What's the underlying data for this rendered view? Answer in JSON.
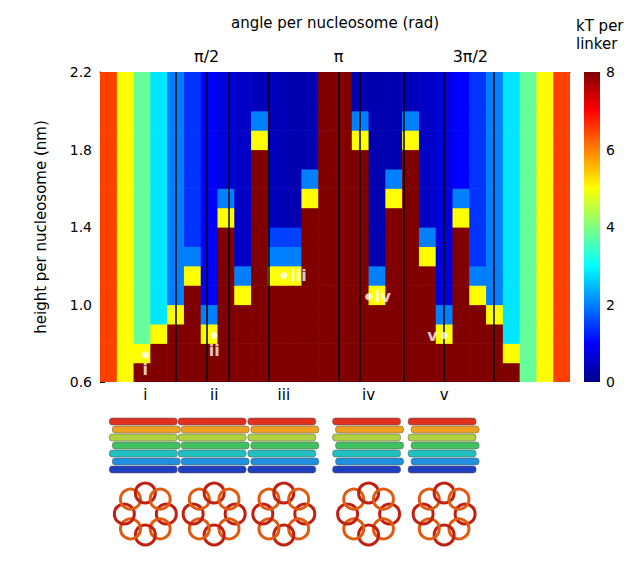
{
  "chart_data": {
    "type": "heatmap",
    "x_label": "angle per nucleosome (rad)",
    "y_label": "height per nucleosome (nm)",
    "xlim": [
      0.3,
      5.9
    ],
    "xticks": [
      {
        "value": 1.5708,
        "label": "π/2"
      },
      {
        "value": 3.1416,
        "label": "π"
      },
      {
        "value": 4.7124,
        "label": "3π/2"
      }
    ],
    "ylim": [
      0.6,
      2.2
    ],
    "yticks": [
      0.6,
      {
        "value": 1,
        "label": "1.0"
      },
      1.4,
      1.8,
      2.2
    ],
    "grid": false,
    "x": [
      0.4,
      0.6,
      0.8,
      1.0,
      1.2,
      1.4,
      1.6,
      1.8,
      2.0,
      2.2,
      2.4,
      2.6,
      2.8,
      3.0,
      3.2,
      3.4,
      3.6,
      3.8,
      4.0,
      4.2,
      4.4,
      4.6,
      4.8,
      5.0,
      5.2,
      5.4,
      5.6,
      5.8
    ],
    "y": [
      0.65,
      0.75,
      0.85,
      0.95,
      1.05,
      1.15,
      1.25,
      1.35,
      1.45,
      1.55,
      1.65,
      1.75,
      1.85,
      1.95,
      2.05,
      2.15
    ],
    "values": [
      [
        6.5,
        5.0,
        8,
        8,
        8,
        8,
        8,
        8,
        8,
        8,
        8,
        8,
        8,
        8,
        8,
        8,
        8,
        8,
        8,
        8,
        8,
        8,
        8,
        8,
        8,
        3.8,
        5.0,
        6.5
      ],
      [
        6.5,
        5.0,
        5,
        8,
        8,
        8,
        8,
        8,
        8,
        8,
        8,
        8,
        8,
        8,
        8,
        8,
        8,
        8,
        8,
        8,
        8,
        8,
        8,
        8,
        5,
        3.8,
        5.0,
        6.5
      ],
      [
        6.5,
        5.0,
        3.8,
        5,
        8,
        8,
        5,
        8,
        8,
        8,
        8,
        8,
        8,
        8,
        8,
        8,
        8,
        8,
        8,
        8,
        5,
        8,
        8,
        8,
        2.8,
        3.8,
        5.0,
        6.5
      ],
      [
        6.5,
        5.0,
        3.8,
        2.8,
        5,
        8,
        2,
        8,
        8,
        8,
        8,
        8,
        8,
        8,
        8,
        8,
        8,
        8,
        8,
        8,
        2,
        8,
        8,
        5,
        2.8,
        3.8,
        5.0,
        6.5
      ],
      [
        6.5,
        5.0,
        3.8,
        2.8,
        2.0,
        8,
        1.0,
        8,
        5,
        8,
        8,
        8,
        8,
        8,
        8,
        8,
        5,
        8,
        8,
        8,
        0.7,
        8,
        5,
        2.0,
        2.8,
        3.8,
        5.0,
        6.5
      ],
      [
        6.5,
        5.0,
        3.8,
        2.8,
        2.0,
        5,
        1.0,
        8,
        2,
        8,
        5,
        5,
        8,
        8,
        8,
        8,
        2,
        8,
        8,
        8,
        0.7,
        8,
        2,
        2.0,
        2.8,
        3.8,
        5.0,
        6.5
      ],
      [
        6.5,
        5.0,
        3.8,
        2.8,
        2.0,
        2,
        1.0,
        8,
        0.5,
        8,
        2,
        2,
        8,
        8,
        8,
        8,
        0.3,
        8,
        8,
        5,
        0.7,
        8,
        1.4,
        2.0,
        2.8,
        3.8,
        5.0,
        6.5
      ],
      [
        6.5,
        5.0,
        3.8,
        2.8,
        2.0,
        1.4,
        1.0,
        8,
        0.5,
        8,
        1.5,
        1.5,
        8,
        8,
        8,
        8,
        0.3,
        8,
        8,
        2,
        0.7,
        8,
        1.4,
        2.0,
        2.8,
        3.8,
        5.0,
        6.5
      ],
      [
        6.5,
        5.0,
        3.8,
        2.8,
        2.0,
        1.4,
        1.0,
        5,
        0.5,
        8,
        0.4,
        0.3,
        8,
        8,
        8,
        8,
        0.3,
        8,
        8,
        0.5,
        0.7,
        5,
        1.4,
        2.0,
        2.8,
        3.8,
        5.0,
        6.5
      ],
      [
        6.5,
        5.0,
        3.8,
        2.8,
        2.0,
        1.4,
        1.0,
        2,
        0.5,
        8,
        0.4,
        0.3,
        5,
        8,
        8,
        8,
        0.3,
        5,
        8,
        0.5,
        0.7,
        2,
        1.4,
        2.0,
        2.8,
        3.8,
        5.0,
        6.5
      ],
      [
        6.5,
        5.0,
        3.8,
        2.8,
        2.0,
        1.4,
        1.0,
        0.7,
        0.5,
        8,
        0.4,
        0.3,
        2,
        8,
        8,
        8,
        0.3,
        2,
        8,
        0.5,
        0.7,
        1.0,
        1.4,
        2.0,
        2.8,
        3.8,
        5.0,
        6.5
      ],
      [
        6.5,
        5.0,
        3.8,
        2.8,
        2.0,
        1.4,
        1.0,
        0.7,
        0.5,
        8,
        0.4,
        0.3,
        0.3,
        8,
        8,
        8,
        0.3,
        0.3,
        8,
        0.5,
        0.7,
        1.0,
        1.4,
        2.0,
        2.8,
        3.8,
        5.0,
        6.5
      ],
      [
        6.5,
        5.0,
        3.8,
        2.8,
        2.0,
        1.4,
        1.0,
        0.7,
        0.5,
        5,
        0.4,
        0.3,
        0.3,
        8,
        8,
        5,
        0.3,
        0.3,
        5,
        0.5,
        0.7,
        1.0,
        1.4,
        2.0,
        2.8,
        3.8,
        5.0,
        6.5
      ],
      [
        6.5,
        5.0,
        3.8,
        2.8,
        2.0,
        1.4,
        1.0,
        0.7,
        0.5,
        2,
        0.4,
        0.3,
        0.3,
        8,
        8,
        2,
        0.3,
        0.3,
        2,
        0.5,
        0.7,
        1.0,
        1.4,
        2.0,
        2.8,
        3.8,
        5.0,
        6.5
      ],
      [
        6.5,
        5.0,
        3.8,
        2.8,
        2.0,
        1.4,
        1.0,
        0.7,
        0.5,
        0.4,
        0.4,
        0.3,
        0.3,
        8,
        8,
        0.3,
        0.3,
        0.3,
        0.4,
        0.5,
        0.7,
        1.0,
        1.4,
        2.0,
        2.8,
        3.8,
        5.0,
        6.5
      ],
      [
        6.5,
        5.0,
        3.8,
        2.8,
        2.0,
        1.4,
        1.0,
        0.7,
        0.5,
        0.4,
        0.4,
        0.3,
        0.3,
        8,
        8,
        0.3,
        0.3,
        0.3,
        0.4,
        0.5,
        0.7,
        1.0,
        1.4,
        2.0,
        2.8,
        3.8,
        5.0,
        6.5
      ]
    ],
    "colorbar": {
      "label": "kT per linker",
      "range": [
        0,
        8
      ],
      "ticks": [
        0,
        2,
        4,
        6,
        8
      ]
    },
    "reference_lines_x": [
      1.2,
      1.57,
      1.83,
      2.31,
      3.14,
      3.4,
      3.92,
      4.4,
      4.99
    ],
    "points": [
      {
        "label": "i",
        "x": 0.84,
        "y": 0.74
      },
      {
        "label": "ii",
        "x": 1.66,
        "y": 0.84
      },
      {
        "label": "iii",
        "x": 2.49,
        "y": 1.15
      },
      {
        "label": "iv",
        "x": 3.5,
        "y": 1.04
      },
      {
        "label": "v",
        "x": 4.4,
        "y": 0.84
      }
    ],
    "structure_labels": [
      "i",
      "ii",
      "iii",
      "iv",
      "v"
    ]
  }
}
